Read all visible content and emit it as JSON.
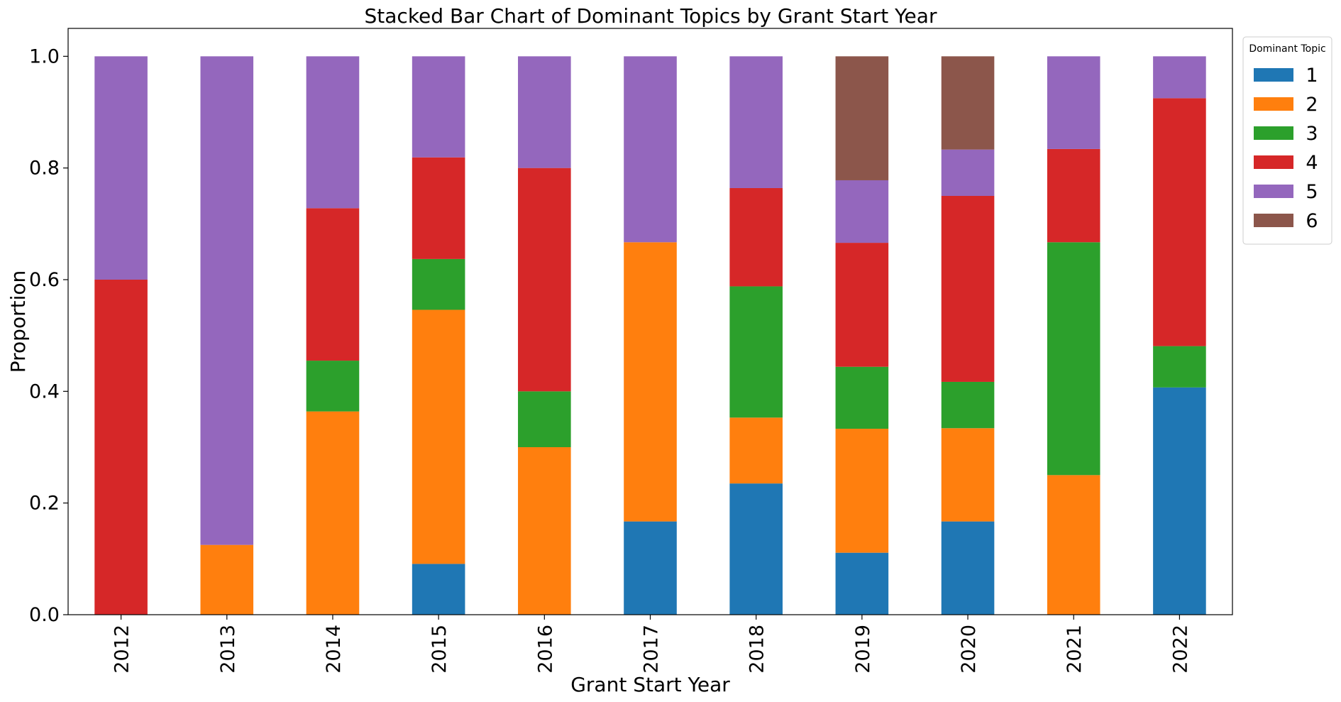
{
  "chart_data": {
    "type": "bar",
    "stacked": true,
    "title": "Stacked Bar Chart of Dominant Topics by Grant Start Year",
    "xlabel": "Grant Start Year",
    "ylabel": "Proportion",
    "ylim": [
      0,
      1.05
    ],
    "yticks": [
      "0.0",
      "0.2",
      "0.4",
      "0.6",
      "0.8",
      "1.0"
    ],
    "grid": false,
    "legend_title": "Dominant Topic",
    "legend_position": "outside-top-right",
    "categories": [
      "2012",
      "2013",
      "2014",
      "2015",
      "2016",
      "2017",
      "2018",
      "2019",
      "2020",
      "2021",
      "2022"
    ],
    "series": [
      {
        "name": "1",
        "color": "#1f77b4",
        "values": [
          0,
          0,
          0,
          0.091,
          0,
          0.167,
          0.235,
          0.111,
          0.167,
          0,
          0.407
        ]
      },
      {
        "name": "2",
        "color": "#ff7f0e",
        "values": [
          0,
          0.125,
          0.364,
          0.455,
          0.3,
          0.5,
          0.118,
          0.222,
          0.167,
          0.25,
          0
        ]
      },
      {
        "name": "3",
        "color": "#2ca02c",
        "values": [
          0,
          0,
          0.091,
          0.091,
          0.1,
          0,
          0.235,
          0.111,
          0.083,
          0.417,
          0.074
        ]
      },
      {
        "name": "4",
        "color": "#d62728",
        "values": [
          0.6,
          0,
          0.273,
          0.182,
          0.4,
          0,
          0.176,
          0.222,
          0.333,
          0.167,
          0.444
        ]
      },
      {
        "name": "5",
        "color": "#9467bd",
        "values": [
          0.4,
          0.875,
          0.272,
          0.181,
          0.2,
          0.333,
          0.236,
          0.112,
          0.083,
          0.166,
          0.075
        ]
      },
      {
        "name": "6",
        "color": "#8c564b",
        "values": [
          0,
          0,
          0,
          0,
          0,
          0,
          0,
          0.222,
          0.167,
          0,
          0
        ]
      }
    ]
  }
}
